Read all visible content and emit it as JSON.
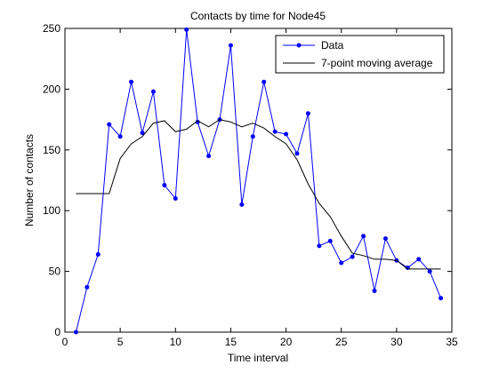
{
  "chart_data": {
    "type": "line",
    "title": "Contacts by time for Node45",
    "xlabel": "Time interval",
    "ylabel": "Number of contacts",
    "xlim": [
      0,
      35
    ],
    "ylim": [
      0,
      250
    ],
    "xticks": [
      0,
      5,
      10,
      15,
      20,
      25,
      30,
      35
    ],
    "yticks": [
      0,
      50,
      100,
      150,
      200,
      250
    ],
    "grid": false,
    "legend_position": "top-right",
    "series": [
      {
        "name": "Data",
        "color": "#0000ff",
        "marker": "dot",
        "x": [
          1,
          2,
          3,
          4,
          5,
          6,
          7,
          8,
          9,
          10,
          11,
          12,
          13,
          14,
          15,
          16,
          17,
          18,
          19,
          20,
          21,
          22,
          23,
          24,
          25,
          26,
          27,
          28,
          29,
          30,
          31,
          32,
          33,
          34
        ],
        "y": [
          0,
          37,
          64,
          171,
          161,
          206,
          164,
          198,
          121,
          110,
          249,
          173,
          145,
          175,
          236,
          105,
          161,
          206,
          165,
          163,
          147,
          180,
          71,
          75,
          57,
          62,
          79,
          34,
          77,
          59,
          53,
          60,
          50,
          28
        ]
      },
      {
        "name": "7-point moving average",
        "color": "#000000",
        "marker": "none",
        "x": [
          1,
          2,
          3,
          4,
          5,
          6,
          7,
          8,
          9,
          10,
          11,
          12,
          13,
          14,
          15,
          16,
          17,
          18,
          19,
          20,
          21,
          22,
          23,
          24,
          25,
          26,
          27,
          28,
          29,
          30,
          31,
          32,
          33,
          34
        ],
        "y": [
          114,
          114,
          114,
          114,
          143,
          155,
          161,
          172,
          174,
          165,
          167,
          174,
          169,
          175,
          173,
          169,
          172,
          168,
          161,
          155,
          142,
          122,
          106,
          95,
          79,
          65,
          63,
          60,
          60,
          59,
          52,
          52,
          52,
          52
        ]
      }
    ]
  }
}
